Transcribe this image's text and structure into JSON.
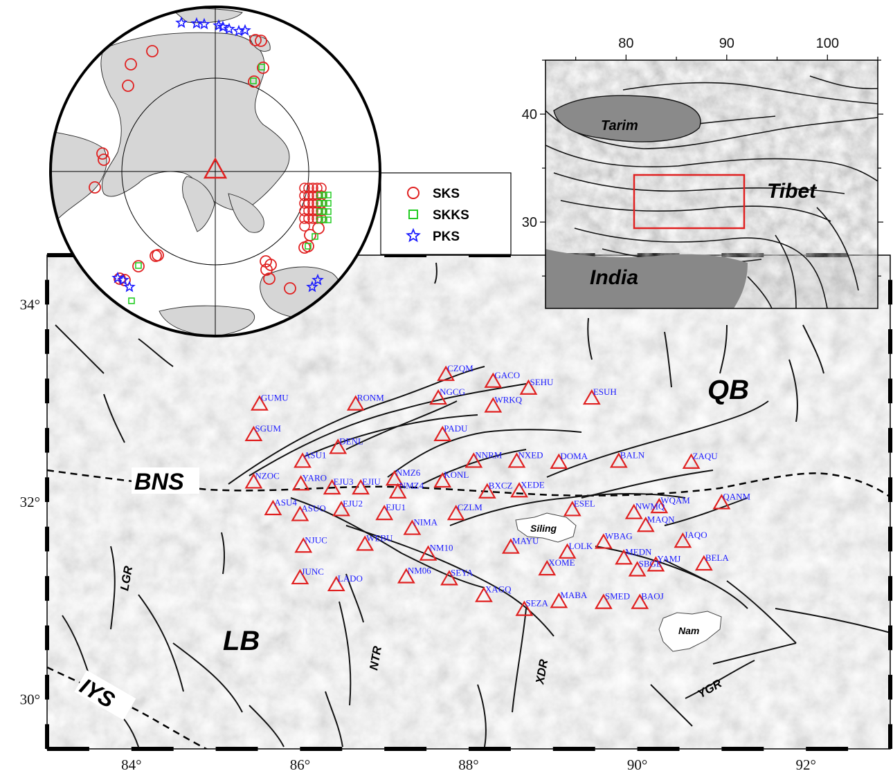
{
  "main_map": {
    "x_ticks": [
      {
        "lon": 84,
        "label": "84°"
      },
      {
        "lon": 86,
        "label": "86°"
      },
      {
        "lon": 88,
        "label": "88°"
      },
      {
        "lon": 90,
        "label": "90°"
      },
      {
        "lon": 92,
        "label": "92°"
      }
    ],
    "y_ticks": [
      {
        "lat": 34,
        "label": "34°"
      },
      {
        "lat": 32,
        "label": "32°"
      },
      {
        "lat": 30,
        "label": "30°"
      }
    ],
    "lon_range": [
      83,
      93
    ],
    "lat_range": [
      29.5,
      34.5
    ],
    "region_labels": {
      "qb": "QB",
      "lb": "LB",
      "bns": "BNS",
      "iys": "IYS",
      "lgr": "LGR",
      "ntr": "NTR",
      "xdr": "XDR",
      "ygr": "YGR",
      "siling": "Siling",
      "nam": "Nam"
    },
    "stations": [
      {
        "name": "CZQM",
        "lon": 87.73,
        "lat": 33.29
      },
      {
        "name": "GACO",
        "lon": 88.29,
        "lat": 33.22
      },
      {
        "name": "SEHU",
        "lon": 88.71,
        "lat": 33.15
      },
      {
        "name": "NGCG",
        "lon": 87.64,
        "lat": 33.05
      },
      {
        "name": "ESUH",
        "lon": 89.46,
        "lat": 33.05
      },
      {
        "name": "GUMU",
        "lon": 85.52,
        "lat": 32.99
      },
      {
        "name": "RONM",
        "lon": 86.66,
        "lat": 32.99
      },
      {
        "name": "WRKQ",
        "lon": 88.29,
        "lat": 32.97
      },
      {
        "name": "SGUM",
        "lon": 85.45,
        "lat": 32.68
      },
      {
        "name": "PADU",
        "lon": 87.69,
        "lat": 32.68
      },
      {
        "name": "DENL",
        "lon": 86.45,
        "lat": 32.55
      },
      {
        "name": "ASU1",
        "lon": 86.03,
        "lat": 32.41
      },
      {
        "name": "NNRM",
        "lon": 88.06,
        "lat": 32.41
      },
      {
        "name": "NXED",
        "lon": 88.57,
        "lat": 32.41
      },
      {
        "name": "DOMA",
        "lon": 89.07,
        "lat": 32.4
      },
      {
        "name": "BALN",
        "lon": 89.78,
        "lat": 32.41
      },
      {
        "name": "ZAQU",
        "lon": 90.64,
        "lat": 32.4
      },
      {
        "name": "NZOC",
        "lon": 85.45,
        "lat": 32.2
      },
      {
        "name": "YARO",
        "lon": 86.01,
        "lat": 32.18
      },
      {
        "name": "NMZ6",
        "lon": 87.12,
        "lat": 32.23
      },
      {
        "name": "KONL",
        "lon": 87.69,
        "lat": 32.21
      },
      {
        "name": "EJU3",
        "lon": 86.38,
        "lat": 32.14
      },
      {
        "name": "EJIU",
        "lon": 86.72,
        "lat": 32.14
      },
      {
        "name": "NMZ4",
        "lon": 87.16,
        "lat": 32.1
      },
      {
        "name": "BXCZ",
        "lon": 88.22,
        "lat": 32.1
      },
      {
        "name": "XEDE",
        "lon": 88.6,
        "lat": 32.11
      },
      {
        "name": "WQAM",
        "lon": 90.26,
        "lat": 31.95
      },
      {
        "name": "QANM",
        "lon": 91.0,
        "lat": 31.99
      },
      {
        "name": "ASU4",
        "lon": 85.68,
        "lat": 31.93
      },
      {
        "name": "EJU2",
        "lon": 86.49,
        "lat": 31.92
      },
      {
        "name": "ASUO",
        "lon": 86.0,
        "lat": 31.87
      },
      {
        "name": "EJU1",
        "lon": 87.0,
        "lat": 31.88
      },
      {
        "name": "CZLM",
        "lon": 87.85,
        "lat": 31.88
      },
      {
        "name": "ESEL",
        "lon": 89.23,
        "lat": 31.92
      },
      {
        "name": "NWMQ",
        "lon": 89.96,
        "lat": 31.89
      },
      {
        "name": "NIMA",
        "lon": 87.33,
        "lat": 31.73
      },
      {
        "name": "MAQN",
        "lon": 90.1,
        "lat": 31.76
      },
      {
        "name": "NJUC",
        "lon": 86.04,
        "lat": 31.55
      },
      {
        "name": "WEBU",
        "lon": 86.77,
        "lat": 31.57
      },
      {
        "name": "JAQO",
        "lon": 90.54,
        "lat": 31.6
      },
      {
        "name": "WBAG",
        "lon": 89.6,
        "lat": 31.59
      },
      {
        "name": "MAYU",
        "lon": 88.5,
        "lat": 31.54
      },
      {
        "name": "NM10",
        "lon": 87.52,
        "lat": 31.47
      },
      {
        "name": "LOLK",
        "lon": 89.17,
        "lat": 31.49
      },
      {
        "name": "MEDN",
        "lon": 89.84,
        "lat": 31.43
      },
      {
        "name": "YAMJ",
        "lon": 90.22,
        "lat": 31.36
      },
      {
        "name": "BELA",
        "lon": 90.79,
        "lat": 31.37
      },
      {
        "name": "XOME",
        "lon": 88.93,
        "lat": 31.32
      },
      {
        "name": "SBGE",
        "lon": 90.0,
        "lat": 31.31
      },
      {
        "name": "JUNC",
        "lon": 86.0,
        "lat": 31.23
      },
      {
        "name": "NM06",
        "lon": 87.26,
        "lat": 31.24
      },
      {
        "name": "SEYA",
        "lon": 87.77,
        "lat": 31.22
      },
      {
        "name": "LADO",
        "lon": 86.43,
        "lat": 31.16
      },
      {
        "name": "XAGQ",
        "lon": 88.18,
        "lat": 31.05
      },
      {
        "name": "MABA",
        "lon": 89.07,
        "lat": 30.99
      },
      {
        "name": "SMED",
        "lon": 89.6,
        "lat": 30.98
      },
      {
        "name": "BAOJ",
        "lon": 90.03,
        "lat": 30.98
      },
      {
        "name": "SEZA",
        "lon": 88.66,
        "lat": 30.91
      }
    ]
  },
  "inset_tibet": {
    "x_ticks": [
      {
        "lon": 80,
        "label": "80"
      },
      {
        "lon": 90,
        "label": "90"
      },
      {
        "lon": 100,
        "label": "100"
      }
    ],
    "y_ticks": [
      {
        "lat": 40,
        "label": "40"
      },
      {
        "lat": 30,
        "label": "30"
      }
    ],
    "lon_range": [
      72,
      105
    ],
    "lat_range": [
      22,
      45
    ],
    "labels": {
      "tarim": "Tarim",
      "tibet": "Tibet",
      "india": "India"
    }
  },
  "globe": {
    "legend": [
      {
        "symbol": "circle",
        "color": "#e02020",
        "label": "SKS"
      },
      {
        "symbol": "square",
        "color": "#22cc22",
        "label": "SKKS"
      },
      {
        "symbol": "star",
        "color": "#1a1aff",
        "label": "PKS"
      }
    ]
  },
  "colors": {
    "station_marker": "#e02020",
    "station_label": "#1a1aff",
    "fault": "#111111",
    "box": "#e02020"
  }
}
